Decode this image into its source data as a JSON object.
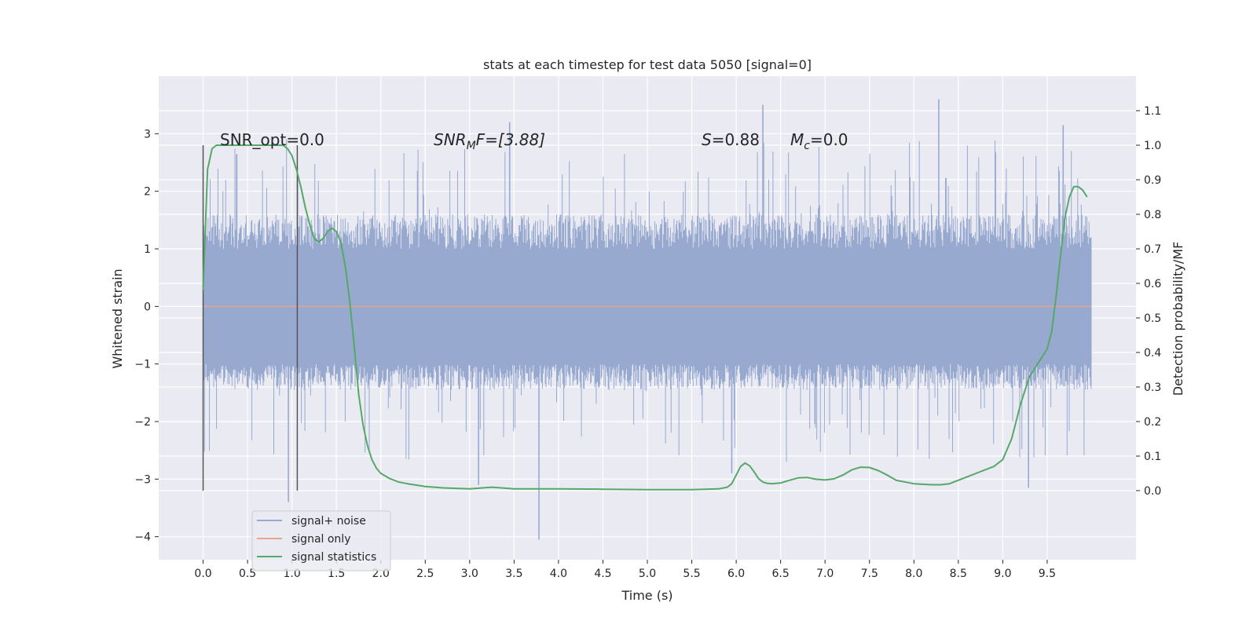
{
  "chart_data": {
    "type": "line",
    "title": "stats at each timestep for test data 5050 [signal=0]",
    "xlabel": "Time (s)",
    "ylabel": "Whitened strain",
    "y2label": "Detection probability/MF",
    "xlim": [
      -0.5,
      10.5
    ],
    "ylim": [
      -4.4,
      4.0
    ],
    "y2lim": [
      -0.2,
      1.2
    ],
    "x_ticks": [
      0.0,
      0.5,
      1.0,
      1.5,
      2.0,
      2.5,
      3.0,
      3.5,
      4.0,
      4.5,
      5.0,
      5.5,
      6.0,
      6.5,
      7.0,
      7.5,
      8.0,
      8.5,
      9.0,
      9.5
    ],
    "x_tick_labels": [
      "0.0",
      "0.5",
      "1.0",
      "1.5",
      "2.0",
      "2.5",
      "3.0",
      "3.5",
      "4.0",
      "4.5",
      "5.0",
      "5.5",
      "6.0",
      "6.5",
      "7.0",
      "7.5",
      "8.0",
      "8.5",
      "9.0",
      "9.5"
    ],
    "y_ticks": [
      -4,
      -3,
      -2,
      -1,
      0,
      1,
      2,
      3
    ],
    "y_tick_labels": [
      "−4",
      "−3",
      "−2",
      "−1",
      "0",
      "1",
      "2",
      "3"
    ],
    "y2_ticks": [
      0.0,
      0.1,
      0.2,
      0.3,
      0.4,
      0.5,
      0.6,
      0.7,
      0.8,
      0.9,
      1.0,
      1.1
    ],
    "y2_tick_labels": [
      "0.0",
      "0.1",
      "0.2",
      "0.3",
      "0.4",
      "0.5",
      "0.6",
      "0.7",
      "0.8",
      "0.9",
      "1.0",
      "1.1"
    ],
    "grid": true,
    "legend_position": "lower-left",
    "legend": [
      "signal+ noise",
      "signal only",
      "signal statistics"
    ],
    "annotations": {
      "snr_opt": "SNR_opt=0.0",
      "snr_mf_base": "SNR",
      "snr_mf_sub": "M",
      "snr_mf_rest": "F=[3.88]",
      "s_label": "S",
      "s_value": "=0.88",
      "mc_base": "M",
      "mc_sub": "c",
      "mc_value": "=0.0"
    },
    "vertical_lines": [
      0.0,
      1.06
    ],
    "vertical_lines_ylim": [
      -3.2,
      2.8
    ],
    "series": [
      {
        "name": "signal+ noise",
        "color": "#98a9d0",
        "x_range": [
          0.0,
          10.0
        ],
        "envelope": {
          "typical_max": 1.6,
          "typical_min": -1.45,
          "extreme_max": 3.6,
          "extreme_min": -4.05
        },
        "spikes": [
          {
            "x": 0.96,
            "y": -3.4
          },
          {
            "x": 3.78,
            "y": -4.05
          },
          {
            "x": 6.3,
            "y": 3.5
          },
          {
            "x": 8.28,
            "y": 3.6
          },
          {
            "x": 9.68,
            "y": 3.15
          },
          {
            "x": 9.29,
            "y": -3.15
          },
          {
            "x": 3.1,
            "y": -3.1
          },
          {
            "x": 5.95,
            "y": -2.9
          },
          {
            "x": 3.45,
            "y": 3.2
          }
        ]
      },
      {
        "name": "signal only",
        "color": "#e5a58a",
        "x": [
          0.0,
          10.0
        ],
        "y": [
          0.0,
          0.0
        ]
      },
      {
        "name": "signal statistics",
        "color": "#55a868",
        "axis": "right",
        "x": [
          0.0,
          0.05,
          0.1,
          0.15,
          0.2,
          0.3,
          0.4,
          0.5,
          0.6,
          0.7,
          0.8,
          0.9,
          0.95,
          1.0,
          1.05,
          1.1,
          1.15,
          1.2,
          1.25,
          1.3,
          1.35,
          1.4,
          1.45,
          1.5,
          1.55,
          1.6,
          1.65,
          1.7,
          1.75,
          1.8,
          1.85,
          1.9,
          1.95,
          2.0,
          2.1,
          2.2,
          2.3,
          2.5,
          2.7,
          3.0,
          3.25,
          3.5,
          4.0,
          4.5,
          5.0,
          5.5,
          5.8,
          5.9,
          5.95,
          6.0,
          6.05,
          6.1,
          6.15,
          6.2,
          6.25,
          6.3,
          6.35,
          6.4,
          6.5,
          6.6,
          6.7,
          6.8,
          6.9,
          7.0,
          7.1,
          7.2,
          7.3,
          7.4,
          7.5,
          7.6,
          7.7,
          7.8,
          8.0,
          8.2,
          8.3,
          8.4,
          8.5,
          8.6,
          8.7,
          8.8,
          8.9,
          9.0,
          9.1,
          9.2,
          9.3,
          9.4,
          9.45,
          9.5,
          9.55,
          9.6,
          9.65,
          9.7,
          9.75,
          9.8,
          9.85,
          9.9,
          9.95
        ],
        "y": [
          0.58,
          0.93,
          0.99,
          1.0,
          1.0,
          1.0,
          1.0,
          1.0,
          1.0,
          1.0,
          1.0,
          1.0,
          0.99,
          0.97,
          0.93,
          0.88,
          0.82,
          0.77,
          0.73,
          0.72,
          0.73,
          0.75,
          0.76,
          0.75,
          0.72,
          0.65,
          0.55,
          0.42,
          0.28,
          0.19,
          0.13,
          0.09,
          0.065,
          0.05,
          0.035,
          0.025,
          0.02,
          0.012,
          0.008,
          0.005,
          0.01,
          0.005,
          0.005,
          0.004,
          0.003,
          0.003,
          0.005,
          0.01,
          0.02,
          0.045,
          0.07,
          0.08,
          0.072,
          0.055,
          0.035,
          0.025,
          0.021,
          0.02,
          0.022,
          0.03,
          0.037,
          0.038,
          0.033,
          0.031,
          0.034,
          0.045,
          0.06,
          0.068,
          0.067,
          0.058,
          0.045,
          0.03,
          0.02,
          0.017,
          0.017,
          0.02,
          0.03,
          0.04,
          0.05,
          0.06,
          0.07,
          0.09,
          0.15,
          0.25,
          0.33,
          0.37,
          0.39,
          0.41,
          0.46,
          0.56,
          0.68,
          0.79,
          0.85,
          0.88,
          0.88,
          0.87,
          0.85
        ]
      }
    ]
  }
}
